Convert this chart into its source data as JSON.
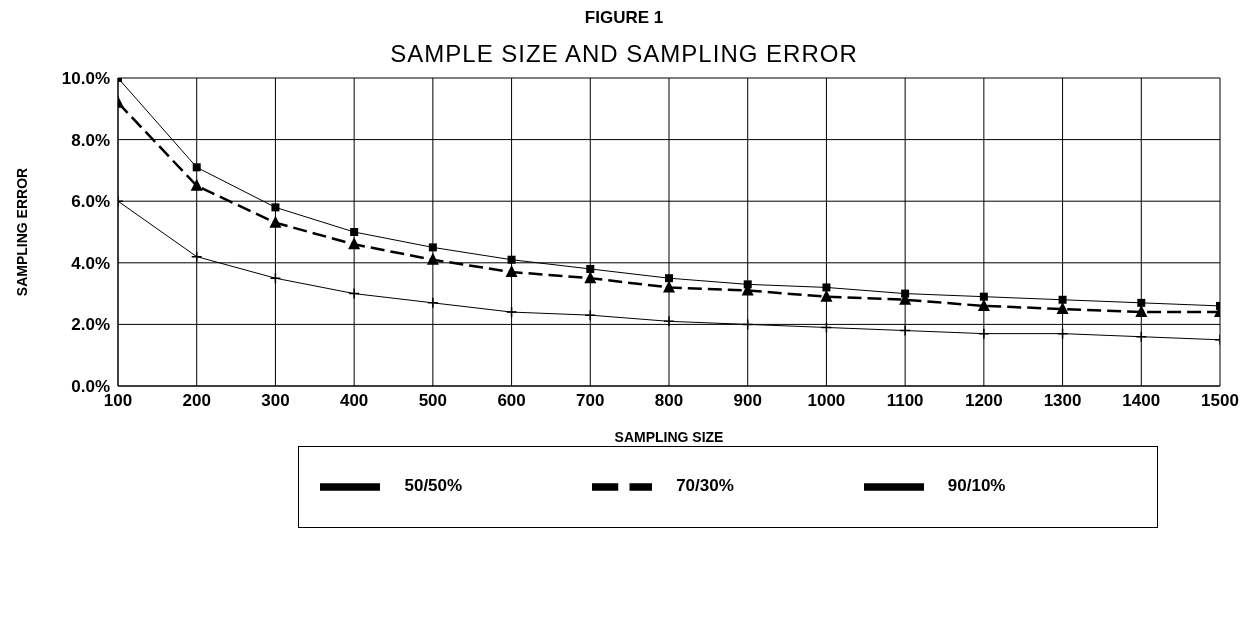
{
  "chart_data": {
    "type": "line",
    "title": "FIGURE 1",
    "subtitle": "SAMPLE SIZE AND SAMPLING ERROR",
    "xlabel": "SAMPLING SIZE",
    "ylabel": "SAMPLING ERROR",
    "x": [
      100,
      200,
      300,
      400,
      500,
      600,
      700,
      800,
      900,
      1000,
      1100,
      1200,
      1300,
      1400,
      1500
    ],
    "series": [
      {
        "name": "50/50%",
        "color": "#000000",
        "marker": "square",
        "line_style": "solid",
        "values": [
          10.0,
          7.1,
          5.8,
          5.0,
          4.5,
          4.1,
          3.8,
          3.5,
          3.3,
          3.2,
          3.0,
          2.9,
          2.8,
          2.7,
          2.6
        ]
      },
      {
        "name": "70/30%",
        "color": "#000000",
        "marker": "triangle",
        "line_style": "dashed",
        "values": [
          9.2,
          6.5,
          5.3,
          4.6,
          4.1,
          3.7,
          3.5,
          3.2,
          3.1,
          2.9,
          2.8,
          2.6,
          2.5,
          2.4,
          2.4
        ]
      },
      {
        "name": "90/10%",
        "color": "#000000",
        "marker": "cross",
        "line_style": "solid",
        "values": [
          6.0,
          4.2,
          3.5,
          3.0,
          2.7,
          2.4,
          2.3,
          2.1,
          2.0,
          1.9,
          1.8,
          1.7,
          1.7,
          1.6,
          1.5
        ]
      }
    ],
    "xlim": [
      100,
      1500
    ],
    "xticks": [
      100,
      200,
      300,
      400,
      500,
      600,
      700,
      800,
      900,
      1000,
      1100,
      1200,
      1300,
      1400,
      1500
    ],
    "ylim": [
      0,
      10
    ],
    "yticks": [
      {
        "value": 0,
        "label": "0.0%"
      },
      {
        "value": 2,
        "label": "2.0%"
      },
      {
        "value": 4,
        "label": "4.0%"
      },
      {
        "value": 6,
        "label": "6.0%"
      },
      {
        "value": 8,
        "label": "8.0%"
      },
      {
        "value": 10,
        "label": "10.0%"
      }
    ],
    "grid": true,
    "legend": "bottom"
  }
}
